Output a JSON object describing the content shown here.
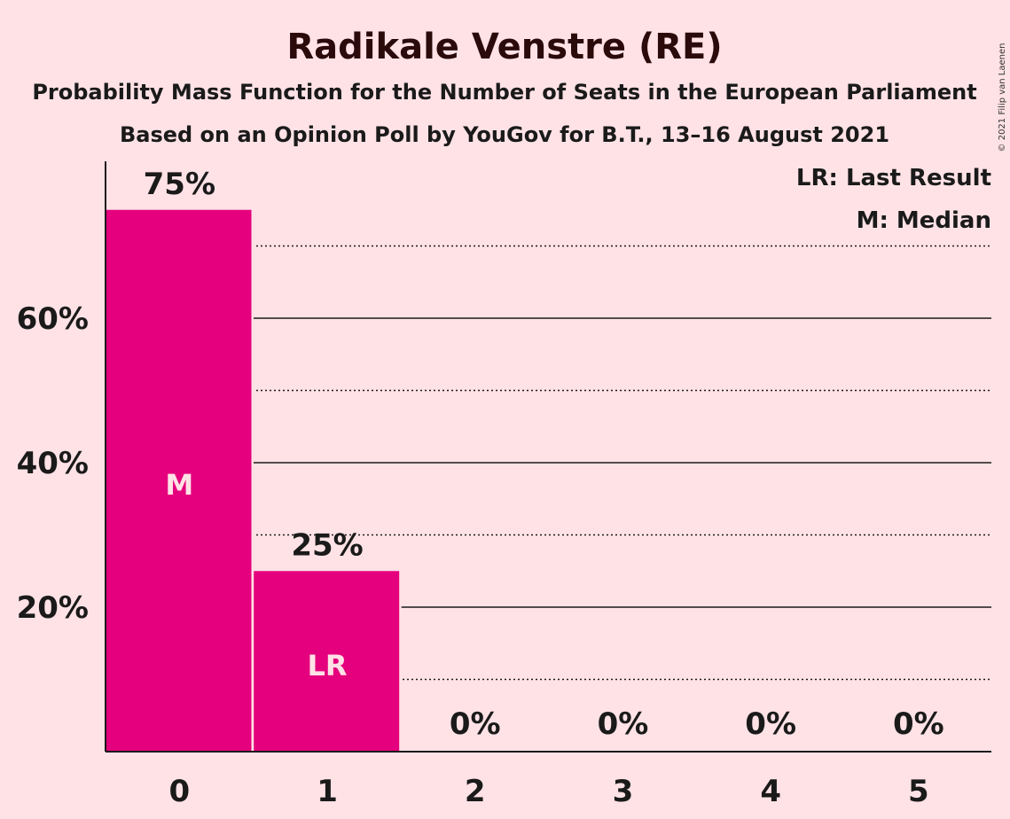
{
  "copyright": "© 2021 Filip van Laenen",
  "chart_data": {
    "type": "bar",
    "title": "Radikale Venstre (RE)",
    "subtitle": "Probability Mass Function for the Number of Seats in the European Parliament",
    "subtitle2": "Based on an Opinion Poll by YouGov for B.T., 13–16 August 2021",
    "categories": [
      "0",
      "1",
      "2",
      "3",
      "4",
      "5"
    ],
    "values": [
      75,
      25,
      0,
      0,
      0,
      0
    ],
    "data_labels": [
      "75%",
      "25%",
      "0%",
      "0%",
      "0%",
      "0%"
    ],
    "bar_markers": [
      "M",
      "LR",
      "",
      "",
      "",
      ""
    ],
    "ylim": [
      0,
      82
    ],
    "yticks": [
      20,
      40,
      60
    ],
    "ytick_labels": [
      "20%",
      "40%",
      "60%"
    ],
    "minor_gridlines": [
      10,
      30,
      50,
      70
    ],
    "legend": [
      "LR: Last Result",
      "M: Median"
    ],
    "legend_position": "top-right",
    "bar_color": "#E5007D",
    "background_color": "#FFE2E6"
  }
}
